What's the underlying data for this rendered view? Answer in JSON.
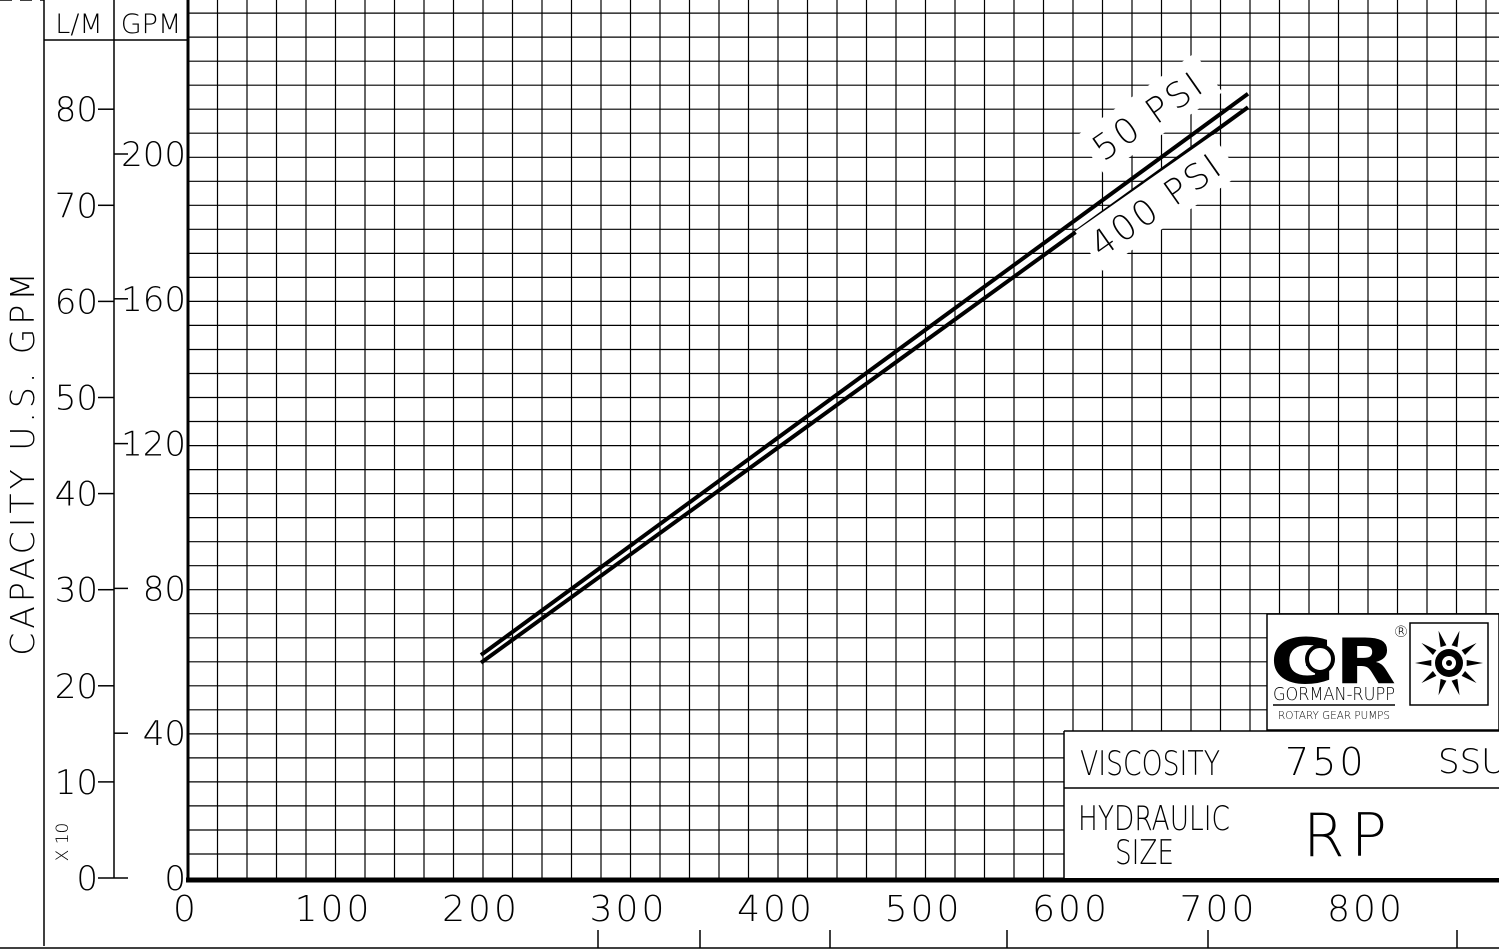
{
  "chart_data": {
    "type": "line",
    "title": "",
    "x": [
      200,
      720
    ],
    "xlim": [
      0,
      875
    ],
    "x_ticks": [
      "0",
      "100",
      "200",
      "300",
      "400",
      "500",
      "600",
      "700",
      "800"
    ],
    "ylabel": "CAPACITY U.S. GPM",
    "gpm_unit": "GPM",
    "gpm_scale_note": "X 10",
    "gpm_ticks": [
      "0",
      "10",
      "20",
      "30",
      "40",
      "50",
      "60",
      "70",
      "80"
    ],
    "lpm_unit": "L/M",
    "lpm_ticks": [
      "0",
      "40",
      "80",
      "120",
      "160",
      "200"
    ],
    "ylim": [
      0,
      91
    ],
    "grid": true,
    "series": [
      {
        "name": "50 PSI",
        "values": [
          23.2,
          81.6
        ]
      },
      {
        "name": "400 PSI",
        "values": [
          22.4,
          80.2
        ]
      }
    ],
    "info": {
      "viscosity_label": "VISCOSITY",
      "viscosity_value": "750",
      "viscosity_unit": "SSU",
      "hydraulic_label_1": "HYDRAULIC",
      "hydraulic_label_2": "SIZE",
      "hydraulic_value": "RP"
    },
    "logo": {
      "mark": "GR",
      "registered": "®",
      "brand": "GORMAN-RUPP",
      "tagline": "ROTARY GEAR PUMPS"
    }
  }
}
